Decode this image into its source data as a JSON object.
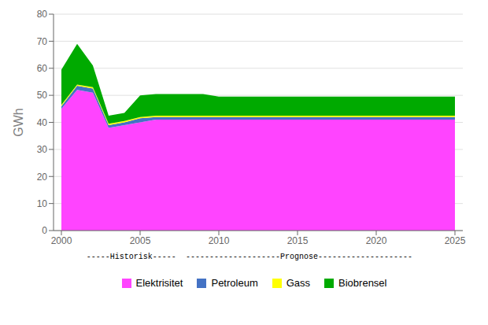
{
  "chart_data": {
    "type": "area",
    "stacked": true,
    "x": [
      2000,
      2001,
      2002,
      2003,
      2004,
      2005,
      2006,
      2007,
      2008,
      2009,
      2010,
      2011,
      2012,
      2013,
      2014,
      2015,
      2016,
      2017,
      2018,
      2019,
      2020,
      2021,
      2022,
      2023,
      2024,
      2025
    ],
    "series": [
      {
        "name": "Elektrisitet",
        "color": "#FF44FF",
        "values": [
          45,
          52,
          51,
          38,
          39,
          40,
          41,
          41,
          41,
          41,
          41,
          41,
          41,
          41,
          41,
          41,
          41,
          41,
          41,
          41,
          41,
          41,
          41,
          41,
          41,
          41
        ]
      },
      {
        "name": "Petroleum",
        "color": "#4472C4",
        "values": [
          1.0,
          1.5,
          1.5,
          1.0,
          1.0,
          1.5,
          1.0,
          1.0,
          1.0,
          1.0,
          1.0,
          1.0,
          1.0,
          1.0,
          1.0,
          1.0,
          1.0,
          1.0,
          1.0,
          1.0,
          1.0,
          1.0,
          1.0,
          1.0,
          1.0,
          1.0
        ]
      },
      {
        "name": "Gass",
        "color": "#FFFF00",
        "values": [
          0.5,
          0.5,
          0.5,
          0.5,
          0.5,
          0.5,
          0.5,
          0.5,
          0.5,
          0.5,
          0.5,
          0.5,
          0.5,
          0.5,
          0.5,
          0.5,
          0.5,
          0.5,
          0.5,
          0.5,
          0.5,
          0.5,
          0.5,
          0.5,
          0.5,
          0.5
        ]
      },
      {
        "name": "Biobrensel",
        "color": "#00AA00",
        "values": [
          13,
          15,
          8,
          3,
          3,
          8,
          8,
          8,
          8,
          8,
          7,
          7,
          7,
          7,
          7,
          7,
          7,
          7,
          7,
          7,
          7,
          7,
          7,
          7,
          7,
          7
        ]
      }
    ],
    "ylabel": "GWh",
    "xlim": [
      1999.5,
      2025.5
    ],
    "xticks": [
      2000,
      2005,
      2010,
      2015,
      2020,
      2025
    ],
    "ylim": [
      0,
      80
    ],
    "yticks": [
      0,
      10,
      20,
      30,
      40,
      50,
      60,
      70,
      80
    ],
    "grid": true,
    "legend": "bottom",
    "annotations": [
      "-----Historisk-----",
      "--------------------Prognose--------------------"
    ]
  }
}
